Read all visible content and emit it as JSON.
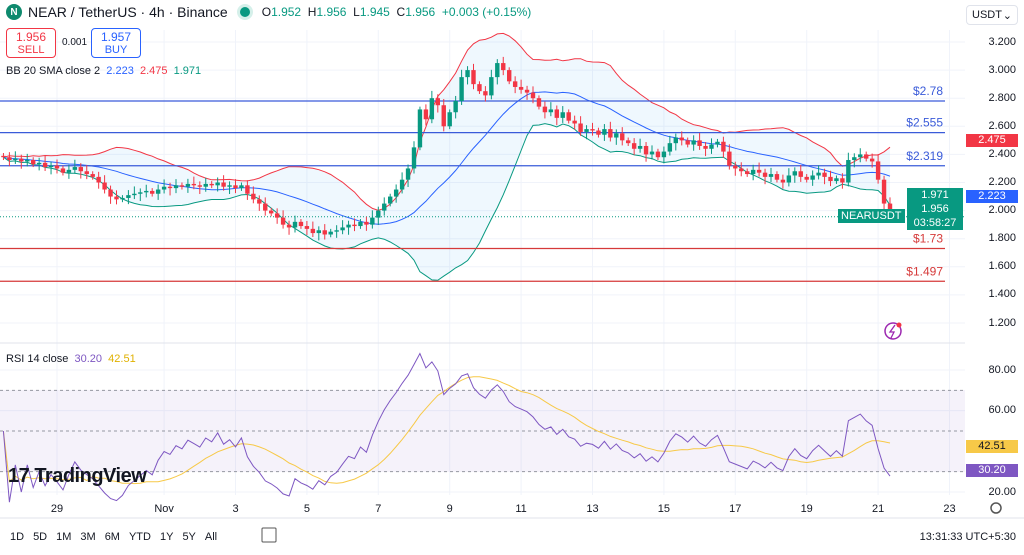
{
  "header": {
    "logo": "N",
    "symbol": "NEAR / TetherUS · 4h · Binance",
    "open_label": "O",
    "open": "1.952",
    "high_label": "H",
    "high": "1.956",
    "low_label": "L",
    "low": "1.945",
    "close_label": "C",
    "close": "1.956",
    "change": "+0.003 (+0.15%)"
  },
  "trade": {
    "sell_price": "1.956",
    "sell_label": "SELL",
    "spread": "0.001",
    "buy_price": "1.957",
    "buy_label": "BUY"
  },
  "bb": {
    "label": "BB 20 SMA close 2",
    "basis": "2.223",
    "upper": "2.475",
    "lower": "1.971"
  },
  "rsi": {
    "label": "RSI 14 close",
    "value": "30.20",
    "ma": "42.51"
  },
  "currency": "USDT",
  "price_badges": {
    "upper": "2.475",
    "basis": "2.223",
    "lower": "1.971",
    "last": "1.956",
    "countdown": "03:58:27",
    "symbol": "NEARUSDT"
  },
  "bottom": {
    "ranges": [
      "1D",
      "5D",
      "1M",
      "3M",
      "6M",
      "YTD",
      "1Y",
      "5Y",
      "All"
    ],
    "time": "13:31:33 UTC+5:30"
  },
  "colors": {
    "up": "#089981",
    "down": "#f23645",
    "basis": "#2962ff",
    "upper": "#f23645",
    "lower": "#089981",
    "rsi": "#7e57c2",
    "rsi_ma": "#f7c948",
    "level_blue": "#3a5bd9",
    "level_red": "#d63a3a"
  },
  "watermark": "TradingView",
  "chart_data": {
    "type": "candlestick",
    "interval": "4h",
    "first_candle": "Oct 27 12:00",
    "closes": [
      2.38,
      2.36,
      2.37,
      2.35,
      2.36,
      2.33,
      2.34,
      2.31,
      2.32,
      2.3,
      2.27,
      2.29,
      2.31,
      2.28,
      2.26,
      2.24,
      2.2,
      2.15,
      2.1,
      2.08,
      2.09,
      2.11,
      2.12,
      2.13,
      2.14,
      2.12,
      2.15,
      2.17,
      2.16,
      2.18,
      2.17,
      2.19,
      2.18,
      2.17,
      2.19,
      2.18,
      2.2,
      2.17,
      2.18,
      2.16,
      2.18,
      2.12,
      2.08,
      2.05,
      2.0,
      1.98,
      1.95,
      1.9,
      1.88,
      1.92,
      1.89,
      1.87,
      1.84,
      1.86,
      1.83,
      1.85,
      1.86,
      1.88,
      1.9,
      1.89,
      1.92,
      1.9,
      1.95,
      2.0,
      2.05,
      2.1,
      2.15,
      2.22,
      2.3,
      2.45,
      2.72,
      2.65,
      2.8,
      2.75,
      2.6,
      2.7,
      2.78,
      2.95,
      3.0,
      2.9,
      2.85,
      2.82,
      2.95,
      3.05,
      3.0,
      2.92,
      2.88,
      2.86,
      2.84,
      2.8,
      2.74,
      2.7,
      2.72,
      2.66,
      2.7,
      2.64,
      2.62,
      2.56,
      2.58,
      2.57,
      2.54,
      2.58,
      2.52,
      2.55,
      2.5,
      2.48,
      2.44,
      2.46,
      2.4,
      2.42,
      2.38,
      2.42,
      2.48,
      2.52,
      2.5,
      2.47,
      2.5,
      2.46,
      2.44,
      2.47,
      2.49,
      2.42,
      2.32,
      2.3,
      2.28,
      2.26,
      2.29,
      2.27,
      2.24,
      2.26,
      2.22,
      2.2,
      2.25,
      2.28,
      2.24,
      2.22,
      2.25,
      2.27,
      2.24,
      2.21,
      2.23,
      2.2,
      2.36,
      2.38,
      2.4,
      2.37,
      2.35,
      2.22,
      2.05,
      1.956
    ],
    "price_ticks": [
      "3.200",
      "3.000",
      "2.800",
      "2.600",
      "2.400",
      "2.200",
      "2.000",
      "1.800",
      "1.600",
      "1.400",
      "1.200"
    ],
    "ylim": [
      1.2,
      3.2
    ],
    "x_ticks": [
      "29",
      "Nov",
      "3",
      "5",
      "7",
      "9",
      "11",
      "13",
      "15",
      "17",
      "19",
      "21",
      "23"
    ],
    "levels": [
      {
        "value": 2.78,
        "label": "$2.78",
        "color": "blue"
      },
      {
        "value": 2.555,
        "label": "$2.555",
        "color": "blue"
      },
      {
        "value": 2.319,
        "label": "$2.319",
        "color": "blue"
      },
      {
        "value": 1.73,
        "label": "$1.73",
        "color": "red"
      },
      {
        "value": 1.497,
        "label": "$1.497",
        "color": "red"
      }
    ],
    "rsi_ticks": [
      "80.00",
      "60.00",
      "20.00"
    ],
    "rsi_ylim": [
      20,
      80
    ],
    "rsi_bands": [
      70,
      50,
      30
    ],
    "grid": true
  }
}
